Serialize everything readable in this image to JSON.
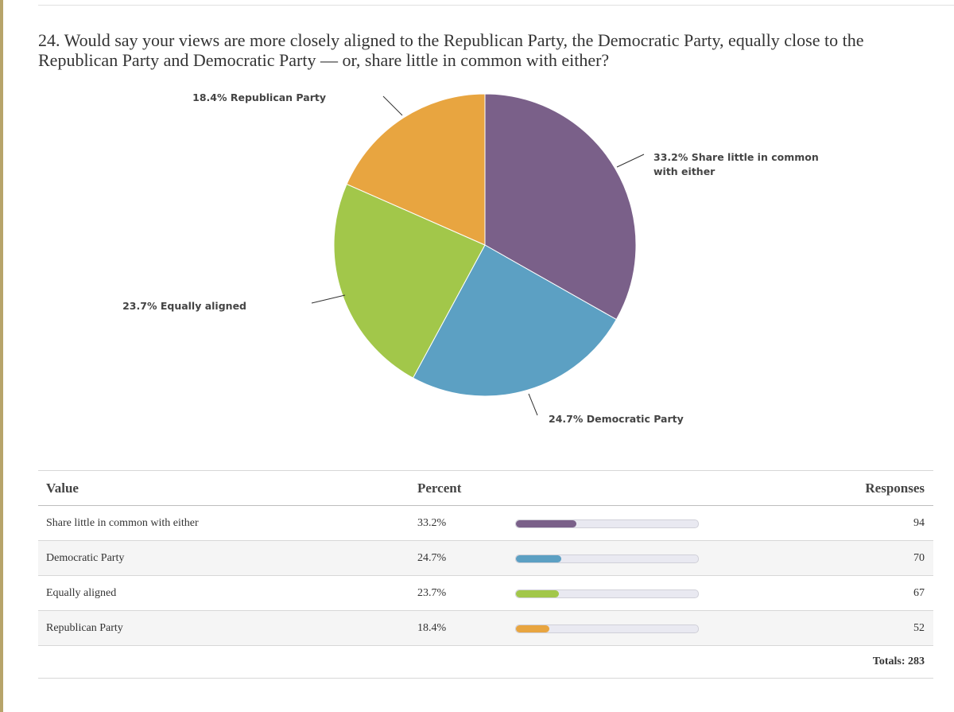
{
  "question": "24. Would say your views are more closely aligned to the Republican Party, the Democratic Party, equally close to the Republican Party and Democratic Party — or, share little in common with either?",
  "colors": {
    "share_little": "#7a6089",
    "democratic": "#5ca0c3",
    "equally": "#a2c74a",
    "republican": "#e8a540"
  },
  "chart_data": {
    "type": "pie",
    "title": "24. Would say your views are more closely aligned to the Republican Party, the Democratic Party, equally close to the Republican Party and Democratic Party — or, share little in common with either?",
    "slices": [
      {
        "label": "Share little in common with either",
        "value": 33.2,
        "color": "#7a6089",
        "data_label_line1": "33.2% Share little in common",
        "data_label_line2": "with either"
      },
      {
        "label": "Democratic Party",
        "value": 24.7,
        "color": "#5ca0c3",
        "data_label_line1": "24.7% Democratic Party",
        "data_label_line2": ""
      },
      {
        "label": "Equally aligned",
        "value": 23.7,
        "color": "#a2c74a",
        "data_label_line1": "23.7% Equally aligned",
        "data_label_line2": ""
      },
      {
        "label": "Republican Party",
        "value": 18.4,
        "color": "#e8a540",
        "data_label_line1": "18.4% Republican Party",
        "data_label_line2": ""
      }
    ]
  },
  "table": {
    "headers": {
      "value": "Value",
      "percent": "Percent",
      "responses": "Responses"
    },
    "rows": [
      {
        "value": "Share little in common with either",
        "percent": "33.2%",
        "fraction": 0.332,
        "responses": "94",
        "color": "#7a6089"
      },
      {
        "value": "Democratic Party",
        "percent": "24.7%",
        "fraction": 0.247,
        "responses": "70",
        "color": "#5ca0c3"
      },
      {
        "value": "Equally aligned",
        "percent": "23.7%",
        "fraction": 0.237,
        "responses": "67",
        "color": "#a2c74a"
      },
      {
        "value": "Republican Party",
        "percent": "18.4%",
        "fraction": 0.184,
        "responses": "52",
        "color": "#e8a540"
      }
    ],
    "totals": "Totals: 283"
  }
}
